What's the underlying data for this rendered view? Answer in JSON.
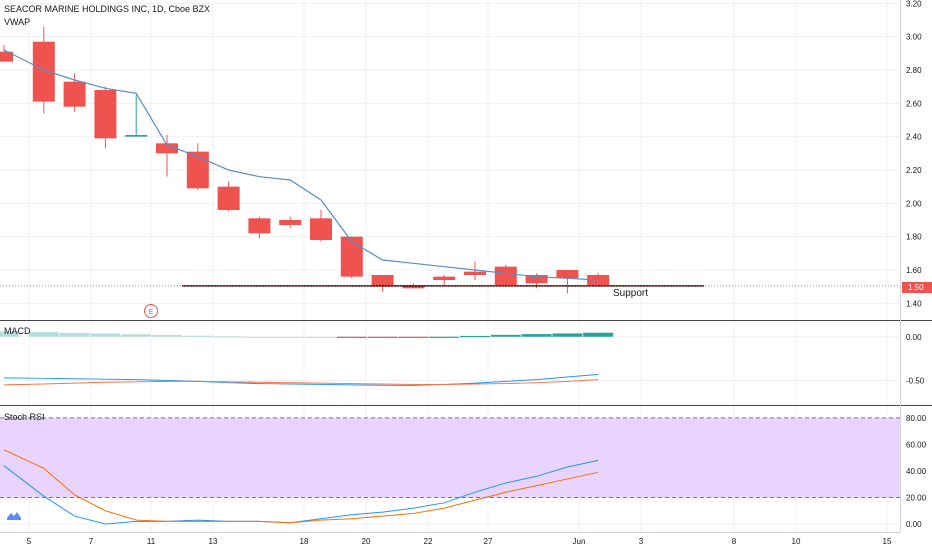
{
  "header": {
    "symbol_title": "SEACOR MARINE HOLDINGS INC, 1D, Cboe BZX",
    "vwap_label": "VWAP",
    "earnings_marker": "E"
  },
  "annotations": {
    "support_label": "Support",
    "support_level": 1.505
  },
  "price_tag": "1.50",
  "colors": {
    "down": "#ef5350",
    "up": "#26a69a",
    "vwap": "#5b8ec4",
    "macd_line": "#2196f3",
    "signal_line": "#ff7043",
    "hist_pos": "#26a69a",
    "hist_neg": "#ef5350",
    "rsi_band": "#e5ccff",
    "stoch_k": "#2196f3",
    "stoch_d": "#ff6d00"
  },
  "chart_data": [
    {
      "type": "candlestick",
      "pane": "price",
      "title": "SEACOR MARINE HOLDINGS INC, 1D, Cboe BZX",
      "yticks": [
        "3.20",
        "3.00",
        "2.80",
        "2.60",
        "2.40",
        "2.20",
        "2.00",
        "1.80",
        "1.60",
        "1.40"
      ],
      "xticks": [
        "5",
        "7",
        "11",
        "13",
        "18",
        "20",
        "22",
        "27",
        "Jun",
        "3",
        "8",
        "10",
        "15"
      ],
      "ylim": [
        1.3,
        3.22
      ],
      "candles": [
        {
          "o": 2.91,
          "h": 2.95,
          "l": 2.85,
          "c": 2.85
        },
        {
          "o": 2.97,
          "h": 3.06,
          "l": 2.54,
          "c": 2.61
        },
        {
          "o": 2.73,
          "h": 2.78,
          "l": 2.55,
          "c": 2.58
        },
        {
          "o": 2.68,
          "h": 2.7,
          "l": 2.33,
          "c": 2.39
        },
        {
          "o": 2.4,
          "h": 2.65,
          "l": 2.4,
          "c": 2.41
        },
        {
          "o": 2.36,
          "h": 2.41,
          "l": 2.16,
          "c": 2.3
        },
        {
          "o": 2.31,
          "h": 2.36,
          "l": 2.08,
          "c": 2.09
        },
        {
          "o": 2.1,
          "h": 2.13,
          "l": 1.95,
          "c": 1.96
        },
        {
          "o": 1.91,
          "h": 1.92,
          "l": 1.79,
          "c": 1.82
        },
        {
          "o": 1.9,
          "h": 1.92,
          "l": 1.85,
          "c": 1.87
        },
        {
          "o": 1.91,
          "h": 1.96,
          "l": 1.77,
          "c": 1.78
        },
        {
          "o": 1.8,
          "h": 1.8,
          "l": 1.55,
          "c": 1.56
        },
        {
          "o": 1.57,
          "h": 1.57,
          "l": 1.47,
          "c": 1.5
        },
        {
          "o": 1.51,
          "h": 1.52,
          "l": 1.49,
          "c": 1.49
        },
        {
          "o": 1.56,
          "h": 1.57,
          "l": 1.51,
          "c": 1.54
        },
        {
          "o": 1.59,
          "h": 1.65,
          "l": 1.54,
          "c": 1.57
        },
        {
          "o": 1.62,
          "h": 1.63,
          "l": 1.5,
          "c": 1.51
        },
        {
          "o": 1.57,
          "h": 1.58,
          "l": 1.49,
          "c": 1.52
        },
        {
          "o": 1.6,
          "h": 1.6,
          "l": 1.46,
          "c": 1.55
        },
        {
          "o": 1.57,
          "h": 1.58,
          "l": 1.5,
          "c": 1.51
        }
      ],
      "vwap": [
        2.92,
        2.8,
        2.74,
        2.69,
        2.66,
        2.35,
        2.28,
        2.2,
        2.16,
        2.14,
        2.02,
        1.77,
        1.66,
        1.64,
        1.62,
        1.6,
        1.58,
        1.56,
        1.55,
        1.54
      ]
    },
    {
      "type": "bar+line",
      "pane": "macd",
      "title": "MACD",
      "yticks": [
        "0.00",
        "-0.50"
      ],
      "ylim": [
        -0.78,
        0.18
      ],
      "histogram": [
        0.06,
        0.052,
        0.044,
        0.036,
        0.028,
        0.02,
        0.012,
        0.004,
        -0.004,
        -0.012,
        -0.004,
        -0.012,
        -0.012,
        -0.006,
        0.0,
        0.01,
        0.022,
        0.03,
        0.038,
        0.046
      ],
      "macd": [
        -0.47,
        -0.475,
        -0.48,
        -0.485,
        -0.49,
        -0.5,
        -0.51,
        -0.525,
        -0.535,
        -0.54,
        -0.545,
        -0.55,
        -0.555,
        -0.555,
        -0.545,
        -0.53,
        -0.51,
        -0.49,
        -0.46,
        -0.43
      ],
      "signal": [
        -0.55,
        -0.54,
        -0.53,
        -0.52,
        -0.515,
        -0.51,
        -0.51,
        -0.515,
        -0.52,
        -0.525,
        -0.53,
        -0.535,
        -0.54,
        -0.545,
        -0.545,
        -0.54,
        -0.535,
        -0.525,
        -0.51,
        -0.49
      ]
    },
    {
      "type": "line",
      "pane": "stoch_rsi",
      "title": "Stoch RSI",
      "yticks": [
        "80.00",
        "60.00",
        "40.00",
        "20.00",
        "0.00"
      ],
      "ylim": [
        -6,
        89
      ],
      "bands": [
        20,
        80
      ],
      "k": [
        44,
        21,
        6,
        0,
        2,
        2,
        3,
        2,
        2,
        1,
        4,
        7,
        9,
        12,
        16,
        24,
        31,
        36,
        43,
        48
      ],
      "d": [
        56,
        42,
        22,
        10,
        3,
        2,
        2,
        2,
        2,
        1,
        3,
        4,
        6,
        8,
        12,
        18,
        24,
        29,
        34,
        39
      ]
    }
  ]
}
